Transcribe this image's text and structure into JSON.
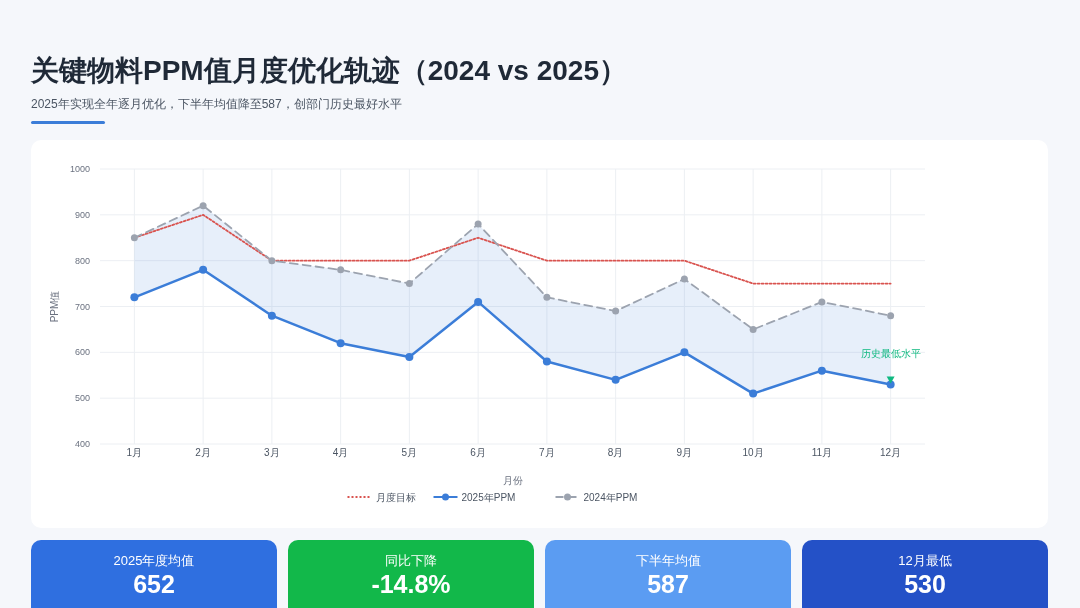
{
  "chart_data": [
    {
      "type": "line",
      "title": "关键物料PPM值月度优化轨迹（2024 vs 2025）",
      "subtitle": "2025年实现全年逐月优化，下半年均值降至587，创部门历史最好水平",
      "xlabel": "月份",
      "ylabel": "PPM值",
      "categories": [
        "1月",
        "2月",
        "3月",
        "4月",
        "5月",
        "6月",
        "7月",
        "8月",
        "9月",
        "10月",
        "11月",
        "12月"
      ],
      "series": [
        {
          "name": "月度目标",
          "color": "#d9534f",
          "line_style": "dotted",
          "marker": "none",
          "values": [
            850,
            900,
            800,
            800,
            800,
            850,
            800,
            800,
            800,
            750,
            750,
            750
          ]
        },
        {
          "name": "2025年PPM",
          "color": "#3b7dd8",
          "line_style": "solid",
          "marker": "circle",
          "values": [
            720,
            780,
            680,
            620,
            590,
            710,
            580,
            540,
            600,
            510,
            560,
            530
          ],
          "lower": [
            720,
            780,
            680,
            620,
            590,
            710,
            580,
            540,
            600,
            510,
            560,
            530
          ],
          "upper": [
            850,
            920,
            800,
            780,
            750,
            880,
            720,
            690,
            760,
            650,
            710,
            680
          ]
        },
        {
          "name": "2024年PPM",
          "color": "#9ca3af",
          "line_style": "dashed",
          "marker": "circle",
          "values": [
            850,
            920,
            800,
            780,
            750,
            880,
            720,
            690,
            760,
            650,
            710,
            680
          ]
        }
      ],
      "ylim": [
        400,
        1000
      ],
      "yticks": [
        400,
        500,
        600,
        700,
        800,
        900,
        1000
      ],
      "grid": true,
      "legend": "bottom",
      "annotations": [
        {
          "text": "历史最低水平",
          "x": "12月",
          "y": 530
        }
      ]
    },
    {
      "type": "other",
      "title": "2025年度均值",
      "annotations": [
        "652"
      ],
      "color": "#2f6fe0"
    },
    {
      "type": "other",
      "title": "同比下降",
      "annotations": [
        "-14.8%"
      ],
      "color": "#12b84a"
    },
    {
      "type": "other",
      "title": "下半年均值",
      "annotations": [
        "587"
      ],
      "color": "#5b9cf2"
    },
    {
      "type": "other",
      "title": "12月最低",
      "annotations": [
        "530"
      ],
      "color": "#2451c7"
    }
  ]
}
